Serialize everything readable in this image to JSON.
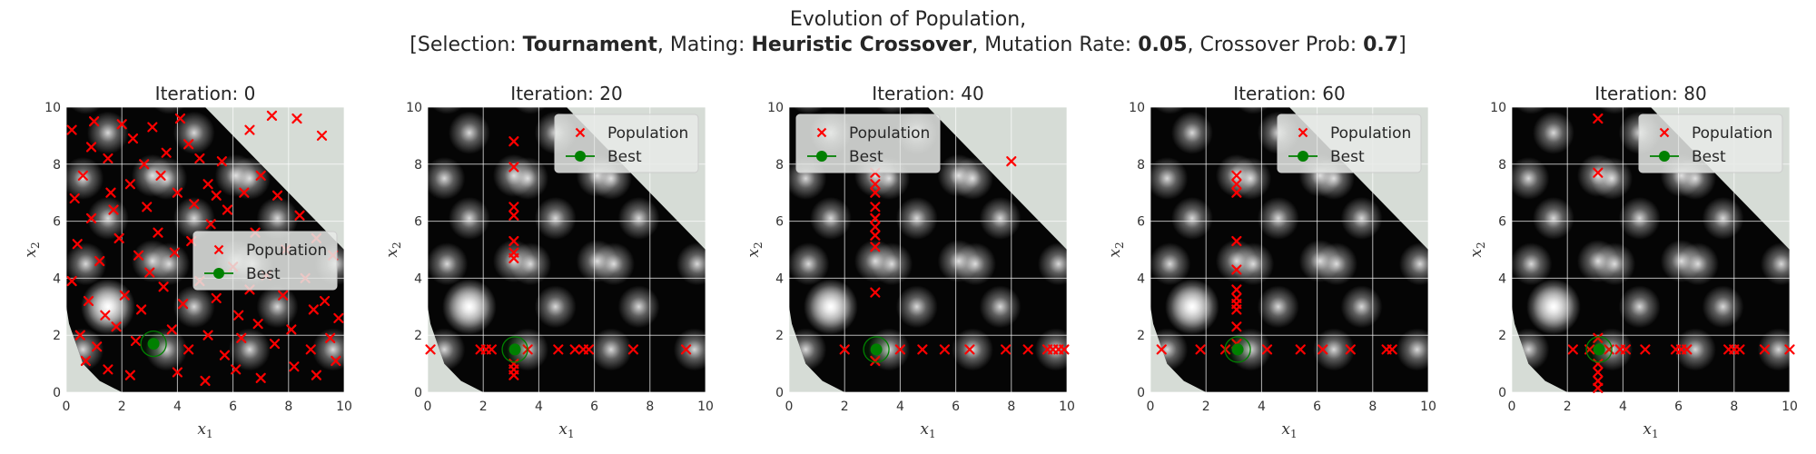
{
  "figure": {
    "title_line1": "Evolution of Population,",
    "title_line2": [
      {
        "text": "[Selection: ",
        "bold": false
      },
      {
        "text": "Tournament",
        "bold": true
      },
      {
        "text": ", Mating: ",
        "bold": false
      },
      {
        "text": "Heuristic Crossover",
        "bold": true
      },
      {
        "text": ", Mutation Rate: ",
        "bold": false
      },
      {
        "text": "0.05",
        "bold": true
      },
      {
        "text": ", Crossover Prob: ",
        "bold": false
      },
      {
        "text": "0.7",
        "bold": true
      },
      {
        "text": "]",
        "bold": false
      }
    ]
  },
  "colors": {
    "population": "#ff0000",
    "best": "#008000",
    "background": "#d6dcd6",
    "grid": "#ffffff",
    "legend_bg": "#e8eae8"
  },
  "chart_data": [
    {
      "type": "scatter",
      "title": "Iteration: 0",
      "xlabel": "x_1",
      "ylabel": "x_2",
      "xlim": [
        0,
        10
      ],
      "ylim": [
        0,
        10
      ],
      "xticks": [
        0,
        2,
        4,
        6,
        8,
        10
      ],
      "yticks": [
        0,
        2,
        4,
        6,
        8,
        10
      ],
      "legend_position": "center-right",
      "legend": [
        "Population",
        "Best"
      ],
      "best": [
        3.14,
        1.7
      ],
      "population": [
        [
          0.2,
          9.2
        ],
        [
          0.6,
          7.6
        ],
        [
          1.0,
          9.5
        ],
        [
          1.5,
          8.2
        ],
        [
          2.0,
          9.4
        ],
        [
          2.4,
          8.9
        ],
        [
          3.1,
          9.3
        ],
        [
          3.6,
          8.4
        ],
        [
          4.1,
          9.6
        ],
        [
          4.4,
          8.7
        ],
        [
          0.3,
          6.8
        ],
        [
          0.9,
          6.1
        ],
        [
          1.6,
          7.0
        ],
        [
          2.3,
          7.3
        ],
        [
          2.9,
          6.5
        ],
        [
          3.4,
          7.6
        ],
        [
          4.0,
          7.0
        ],
        [
          4.6,
          6.6
        ],
        [
          5.1,
          7.3
        ],
        [
          5.6,
          8.1
        ],
        [
          6.6,
          9.2
        ],
        [
          7.4,
          9.7
        ],
        [
          8.3,
          9.6
        ],
        [
          9.2,
          9.0
        ],
        [
          0.4,
          5.2
        ],
        [
          1.2,
          4.6
        ],
        [
          1.9,
          5.4
        ],
        [
          2.6,
          4.8
        ],
        [
          3.3,
          5.6
        ],
        [
          3.9,
          4.9
        ],
        [
          4.5,
          5.3
        ],
        [
          5.2,
          5.9
        ],
        [
          5.8,
          6.4
        ],
        [
          6.4,
          7.0
        ],
        [
          7.0,
          7.6
        ],
        [
          7.6,
          6.9
        ],
        [
          8.4,
          6.2
        ],
        [
          9.0,
          5.4
        ],
        [
          9.6,
          4.8
        ],
        [
          0.2,
          3.9
        ],
        [
          0.8,
          3.2
        ],
        [
          1.4,
          2.7
        ],
        [
          2.1,
          3.4
        ],
        [
          2.7,
          2.9
        ],
        [
          3.5,
          3.7
        ],
        [
          4.2,
          3.1
        ],
        [
          4.8,
          3.9
        ],
        [
          5.4,
          3.3
        ],
        [
          6.0,
          4.4
        ],
        [
          6.6,
          3.6
        ],
        [
          7.2,
          4.1
        ],
        [
          7.8,
          3.4
        ],
        [
          8.6,
          4.0
        ],
        [
          9.3,
          3.2
        ],
        [
          9.8,
          2.6
        ],
        [
          0.5,
          2.0
        ],
        [
          1.1,
          1.6
        ],
        [
          1.8,
          2.3
        ],
        [
          2.5,
          1.8
        ],
        [
          3.8,
          2.2
        ],
        [
          4.4,
          1.5
        ],
        [
          5.1,
          2.0
        ],
        [
          5.7,
          1.3
        ],
        [
          6.3,
          1.9
        ],
        [
          6.9,
          2.4
        ],
        [
          7.5,
          1.7
        ],
        [
          8.1,
          2.2
        ],
        [
          8.8,
          1.5
        ],
        [
          9.5,
          1.9
        ],
        [
          0.7,
          1.1
        ],
        [
          1.5,
          0.8
        ],
        [
          2.3,
          0.6
        ],
        [
          4.0,
          0.7
        ],
        [
          5.0,
          0.4
        ],
        [
          6.1,
          0.8
        ],
        [
          7.0,
          0.5
        ],
        [
          8.2,
          0.9
        ],
        [
          9.0,
          0.6
        ],
        [
          9.7,
          1.1
        ],
        [
          3.0,
          4.2
        ],
        [
          1.7,
          6.4
        ],
        [
          2.8,
          8.0
        ],
        [
          5.4,
          6.9
        ],
        [
          6.8,
          5.6
        ],
        [
          7.9,
          5.0
        ],
        [
          8.9,
          2.9
        ],
        [
          0.9,
          8.6
        ],
        [
          4.8,
          8.2
        ],
        [
          6.2,
          2.7
        ]
      ]
    },
    {
      "type": "scatter",
      "title": "Iteration: 20",
      "xlabel": "x_1",
      "ylabel": "x_2",
      "xlim": [
        0,
        10
      ],
      "ylim": [
        0,
        10
      ],
      "xticks": [
        0,
        2,
        4,
        6,
        8,
        10
      ],
      "yticks": [
        0,
        2,
        4,
        6,
        8,
        10
      ],
      "legend_position": "top-right",
      "legend": [
        "Population",
        "Best"
      ],
      "best": [
        3.14,
        1.5
      ],
      "population": [
        [
          3.1,
          8.8
        ],
        [
          3.1,
          7.9
        ],
        [
          3.1,
          6.5
        ],
        [
          3.1,
          6.2
        ],
        [
          3.1,
          5.3
        ],
        [
          3.1,
          4.9
        ],
        [
          3.1,
          4.7
        ],
        [
          3.1,
          1.0
        ],
        [
          3.1,
          0.8
        ],
        [
          3.1,
          0.6
        ],
        [
          0.1,
          1.5
        ],
        [
          1.9,
          1.5
        ],
        [
          2.1,
          1.5
        ],
        [
          2.3,
          1.5
        ],
        [
          3.6,
          1.5
        ],
        [
          4.7,
          1.5
        ],
        [
          5.3,
          1.5
        ],
        [
          5.6,
          1.5
        ],
        [
          5.8,
          1.5
        ],
        [
          7.4,
          1.5
        ],
        [
          9.3,
          1.5
        ]
      ]
    },
    {
      "type": "scatter",
      "title": "Iteration: 40",
      "xlabel": "x_1",
      "ylabel": "x_2",
      "xlim": [
        0,
        10
      ],
      "ylim": [
        0,
        10
      ],
      "xticks": [
        0,
        2,
        4,
        6,
        8,
        10
      ],
      "yticks": [
        0,
        2,
        4,
        6,
        8,
        10
      ],
      "legend_position": "top-left",
      "legend": [
        "Population",
        "Best"
      ],
      "best": [
        3.14,
        1.5
      ],
      "population": [
        [
          3.1,
          7.7
        ],
        [
          3.1,
          7.3
        ],
        [
          3.1,
          7.0
        ],
        [
          3.1,
          6.5
        ],
        [
          3.1,
          6.1
        ],
        [
          3.1,
          5.8
        ],
        [
          3.1,
          5.5
        ],
        [
          3.1,
          5.1
        ],
        [
          3.1,
          3.5
        ],
        [
          3.1,
          1.1
        ],
        [
          8.0,
          8.1
        ],
        [
          2.0,
          1.5
        ],
        [
          4.0,
          1.5
        ],
        [
          4.8,
          1.5
        ],
        [
          5.6,
          1.5
        ],
        [
          6.5,
          1.5
        ],
        [
          7.8,
          1.5
        ],
        [
          8.6,
          1.5
        ],
        [
          9.3,
          1.5
        ],
        [
          9.5,
          1.5
        ],
        [
          9.7,
          1.5
        ],
        [
          9.9,
          1.5
        ]
      ]
    },
    {
      "type": "scatter",
      "title": "Iteration: 60",
      "xlabel": "x_1",
      "ylabel": "x_2",
      "xlim": [
        0,
        10
      ],
      "ylim": [
        0,
        10
      ],
      "xticks": [
        0,
        2,
        4,
        6,
        8,
        10
      ],
      "yticks": [
        0,
        2,
        4,
        6,
        8,
        10
      ],
      "legend_position": "top-right",
      "legend": [
        "Population",
        "Best"
      ],
      "best": [
        3.14,
        1.5
      ],
      "population": [
        [
          3.1,
          7.6
        ],
        [
          3.1,
          7.3
        ],
        [
          3.1,
          7.0
        ],
        [
          3.1,
          5.3
        ],
        [
          3.1,
          4.3
        ],
        [
          3.1,
          3.6
        ],
        [
          3.1,
          3.3
        ],
        [
          3.1,
          3.1
        ],
        [
          3.1,
          2.9
        ],
        [
          3.1,
          2.3
        ],
        [
          3.1,
          1.7
        ],
        [
          0.4,
          1.5
        ],
        [
          1.8,
          1.5
        ],
        [
          2.7,
          1.5
        ],
        [
          4.2,
          1.5
        ],
        [
          5.4,
          1.5
        ],
        [
          6.2,
          1.5
        ],
        [
          7.2,
          1.5
        ],
        [
          8.5,
          1.5
        ],
        [
          8.7,
          1.5
        ]
      ]
    },
    {
      "type": "scatter",
      "title": "Iteration: 80",
      "xlabel": "x_1",
      "ylabel": "x_2",
      "xlim": [
        0,
        10
      ],
      "ylim": [
        0,
        10
      ],
      "xticks": [
        0,
        2,
        4,
        6,
        8,
        10
      ],
      "yticks": [
        0,
        2,
        4,
        6,
        8,
        10
      ],
      "legend_position": "top-right",
      "legend": [
        "Population",
        "Best"
      ],
      "best": [
        3.14,
        1.5
      ],
      "population": [
        [
          3.1,
          9.6
        ],
        [
          3.1,
          7.7
        ],
        [
          3.1,
          1.9
        ],
        [
          3.1,
          1.0
        ],
        [
          3.1,
          0.7
        ],
        [
          3.1,
          0.4
        ],
        [
          3.1,
          0.15
        ],
        [
          2.2,
          1.5
        ],
        [
          2.8,
          1.5
        ],
        [
          3.5,
          1.5
        ],
        [
          3.9,
          1.5
        ],
        [
          4.1,
          1.5
        ],
        [
          4.8,
          1.5
        ],
        [
          5.9,
          1.5
        ],
        [
          6.1,
          1.5
        ],
        [
          6.3,
          1.5
        ],
        [
          7.8,
          1.5
        ],
        [
          8.0,
          1.5
        ],
        [
          8.2,
          1.5
        ],
        [
          9.1,
          1.5
        ],
        [
          10.0,
          1.5
        ]
      ]
    }
  ]
}
